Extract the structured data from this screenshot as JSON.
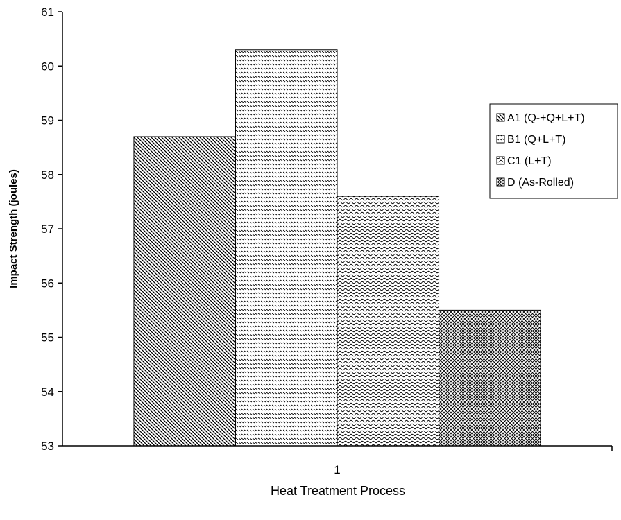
{
  "chart_data": {
    "type": "bar",
    "xlabel": "Heat Treatment Process",
    "ylabel": "Impact Strength (joules)",
    "ylim": [
      53,
      61
    ],
    "yticks": [
      53,
      54,
      55,
      56,
      57,
      58,
      59,
      60,
      61
    ],
    "categories": [
      "1"
    ],
    "grid": false,
    "legend_position": "right",
    "series": [
      {
        "name": "A1 (Q-+Q+L+T)",
        "values": [
          58.7
        ],
        "pattern": "diagonal-lines"
      },
      {
        "name": "B1 (Q+L+T)",
        "values": [
          60.3
        ],
        "pattern": "dashed-horizontal"
      },
      {
        "name": "C1 (L+T)",
        "values": [
          57.6
        ],
        "pattern": "wavy-lines"
      },
      {
        "name": "D (As-Rolled)",
        "values": [
          55.5
        ],
        "pattern": "crosshatch"
      }
    ]
  }
}
